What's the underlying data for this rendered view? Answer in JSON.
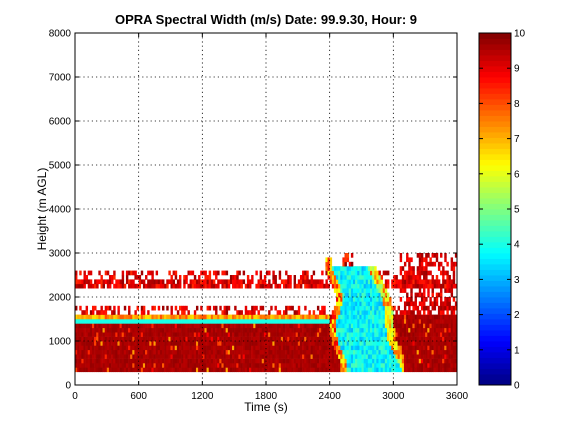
{
  "chart_data": {
    "type": "heatmap",
    "title": "OPRA Spectral Width (m/s)  Date: 99.9.30, Hour: 9",
    "xlabel": "Time (s)",
    "ylabel": "Height (m AGL)",
    "xlim": [
      0,
      3600
    ],
    "ylim": [
      0,
      8000
    ],
    "x_ticks": [
      0,
      600,
      1200,
      1800,
      2400,
      3000,
      3600
    ],
    "y_ticks": [
      0,
      1000,
      2000,
      3000,
      4000,
      5000,
      6000,
      7000,
      8000
    ],
    "grid": true,
    "colorbar": {
      "colormap": "jet",
      "clim": [
        0,
        10
      ],
      "ticks": [
        0,
        1,
        2,
        3,
        4,
        5,
        6,
        7,
        8,
        9,
        10
      ]
    },
    "data_description": {
      "height_bins_m": [
        300,
        3000
      ],
      "bin_height_m": 100,
      "time_step_s": 20,
      "low_width_region_values_ms": [
        3,
        4.5
      ],
      "low_width_region_time_s": [
        2450,
        3050
      ],
      "low_width_region_height_m": [
        300,
        2600
      ],
      "low_width_layer_height_m": [
        1350,
        1550
      ],
      "low_width_layer_value_ms": 4,
      "background_value_ms": 9.8
    }
  }
}
